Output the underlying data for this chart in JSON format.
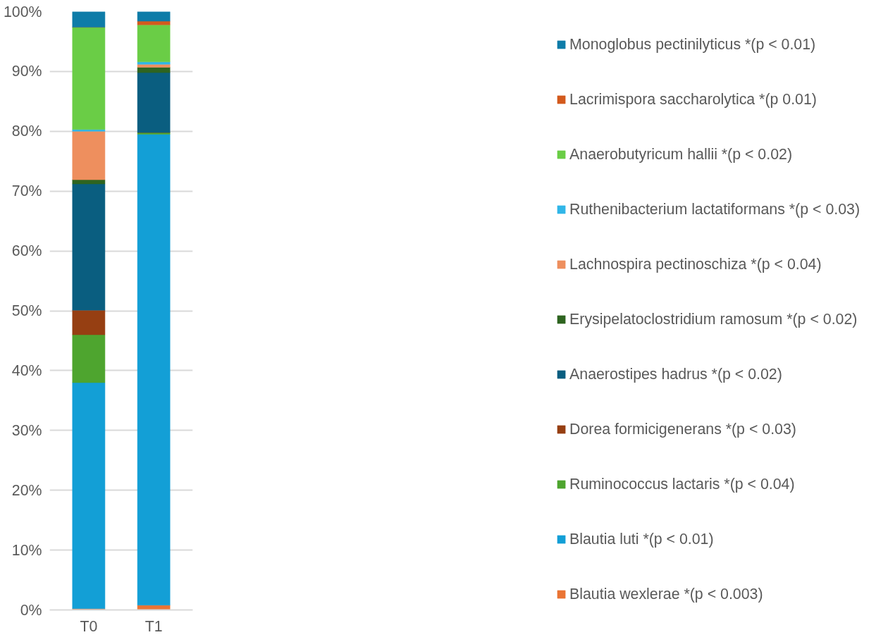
{
  "chart_data": {
    "type": "bar",
    "stacked": true,
    "categories": [
      "T0",
      "T1"
    ],
    "ylim": [
      0,
      100
    ],
    "yticks": [
      {
        "value": 0,
        "label": "0%"
      },
      {
        "value": 10,
        "label": "10%"
      },
      {
        "value": 20,
        "label": "20%"
      },
      {
        "value": 30,
        "label": "30%"
      },
      {
        "value": 40,
        "label": "40%"
      },
      {
        "value": 50,
        "label": "50%"
      },
      {
        "value": 60,
        "label": "60%"
      },
      {
        "value": 70,
        "label": "70%"
      },
      {
        "value": 80,
        "label": "80%"
      },
      {
        "value": 90,
        "label": "90%"
      },
      {
        "value": 100,
        "label": "100%"
      }
    ],
    "grid": "y",
    "legend": "right",
    "series": [
      {
        "name": "Blautia wexlerae *(p < 0.003)",
        "color": "#ea7434",
        "values": [
          0.2,
          0.8
        ]
      },
      {
        "name": "Blautia luti *(p < 0.01)",
        "color": "#139fd6",
        "values": [
          37.8,
          78.7
        ]
      },
      {
        "name": "Ruminococcus lactaris *(p < 0.04)",
        "color": "#4ea52f",
        "values": [
          8.0,
          0.3
        ]
      },
      {
        "name": "Dorea formicigenerans *(p < 0.03)",
        "color": "#963f12",
        "values": [
          4.1,
          0
        ]
      },
      {
        "name": "Anaerostipes hadrus *(p < 0.02)",
        "color": "#0a5e80",
        "values": [
          21.1,
          10.0
        ]
      },
      {
        "name": "Erysipelatoclostridium ramosum *(p < 0.02)",
        "color": "#2e6420",
        "values": [
          0.7,
          0.9
        ]
      },
      {
        "name": "Lachnospira pectinoschiza *(p < 0.04)",
        "color": "#ee8f5e",
        "values": [
          8.1,
          0.5
        ]
      },
      {
        "name": "Ruthenibacterium lactatiformans *(p < 0.03)",
        "color": "#31b6e8",
        "values": [
          0.3,
          0.4
        ]
      },
      {
        "name": "Anaerobutyricum hallii *(p < 0.02)",
        "color": "#6acd46",
        "values": [
          17.1,
          6.2
        ]
      },
      {
        "name": "Lacrimispora saccharolytica *(p 0.01)",
        "color": "#d35a1d",
        "values": [
          0,
          0.6
        ]
      },
      {
        "name": "Monoglobus pectinilyticus *(p < 0.01)",
        "color": "#0e7ca8",
        "values": [
          2.6,
          1.6
        ]
      }
    ]
  }
}
